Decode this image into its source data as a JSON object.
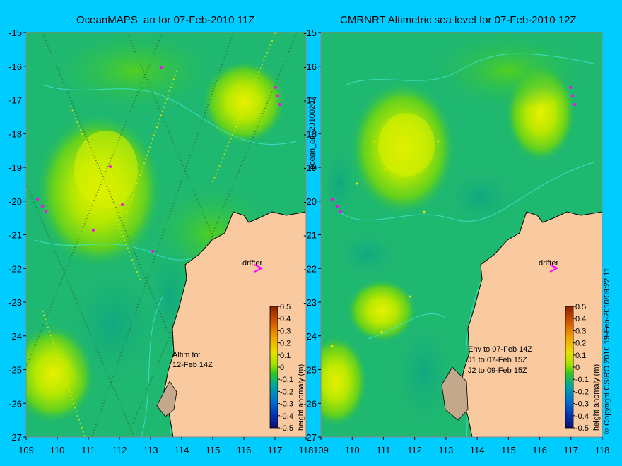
{
  "panels": [
    {
      "title": "OceanMAPS_an for 07-Feb-2010 11Z",
      "annotation_lines": [
        "Altim to:",
        "12-Feb 14Z"
      ],
      "drifter_label": "drifter",
      "side_label": "ocean_an_20100207"
    },
    {
      "title": "CMRNRT Altimetric sea level  for 07-Feb-2010 12Z",
      "annotation_lines": [
        "Env to 07-Feb 14Z",
        "J1 to 07-Feb 15Z",
        "J2 to 09-Feb 15Z"
      ],
      "drifter_label": "drifter",
      "side_label": ""
    }
  ],
  "axes": {
    "x_ticks": [
      "109",
      "110",
      "111",
      "112",
      "113",
      "114",
      "115",
      "116",
      "117",
      "118"
    ],
    "y_ticks": [
      "-15",
      "-16",
      "-17",
      "-18",
      "-19",
      "-20",
      "-21",
      "-22",
      "-23",
      "-24",
      "-25",
      "-26",
      "-27"
    ],
    "lon_range": [
      109,
      118
    ],
    "lat_range": [
      -15,
      -27
    ]
  },
  "colorbar": {
    "label": "height anomaly (m)",
    "ticks": [
      "0.5",
      "0.4",
      "0.3",
      "0.2",
      "0.1",
      "0",
      "-0.1",
      "-0.2",
      "-0.3",
      "-0.4",
      "-0.5"
    ],
    "colors": [
      "#8B2500",
      "#C84400",
      "#E87000",
      "#F5A000",
      "#F0D000",
      "#C8F000",
      "#50D000",
      "#00B060",
      "#00A0A0",
      "#0070C8",
      "#0030B0",
      "#101080"
    ]
  },
  "copyright": "© Copyright CSIRO 2010   19-Feb-2010/09:22:11",
  "colors": {
    "background": "#00CCFF",
    "land": "#F9C9A0",
    "ocean_base": "#1FB870",
    "drifter": "#FF00FF"
  }
}
